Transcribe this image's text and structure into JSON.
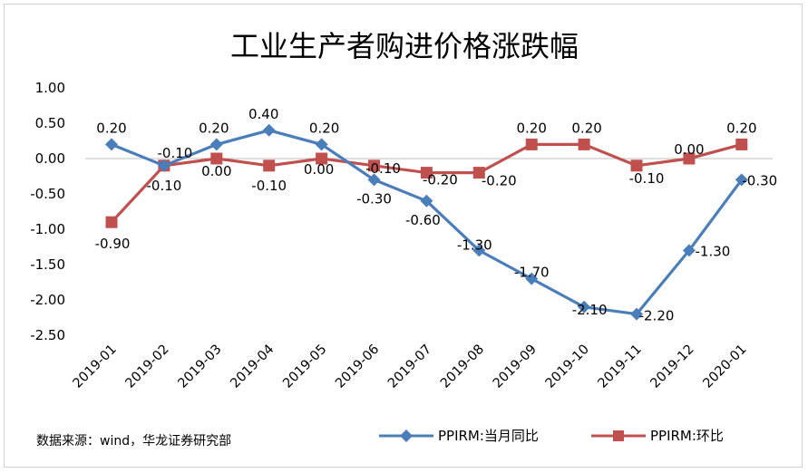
{
  "chart_data": {
    "type": "line",
    "title": "工业生产者购进价格涨跌幅",
    "categories": [
      "2019-01",
      "2019-02",
      "2019-03",
      "2019-04",
      "2019-05",
      "2019-06",
      "2019-07",
      "2019-08",
      "2019-09",
      "2019-10",
      "2019-11",
      "2019-12",
      "2020-01"
    ],
    "ylim": [
      -2.5,
      1.0
    ],
    "yticks": [
      "1.00",
      "0.50",
      "0.00",
      "-0.50",
      "-1.00",
      "-1.50",
      "-2.00",
      "-2.50"
    ],
    "grid": false,
    "legend_position": "bottom-right",
    "series": [
      {
        "name": "PPIRM:当月同比",
        "color": "#4a7ebb",
        "marker": "diamond",
        "values": [
          0.2,
          -0.1,
          0.2,
          0.4,
          0.2,
          -0.3,
          -0.6,
          -1.3,
          -1.7,
          -2.1,
          -2.2,
          -1.3,
          -0.3
        ],
        "labels": [
          "0.20",
          "-0.10",
          "0.20",
          "0.40",
          "0.20",
          "-0.30",
          "-0.60",
          "-1.30",
          "-1.70",
          "-2.10",
          "-2.20",
          "-1.30",
          "-0.30"
        ]
      },
      {
        "name": "PPIRM:环比",
        "color": "#c0504d",
        "marker": "square",
        "values": [
          -0.9,
          -0.1,
          0.0,
          -0.1,
          0.0,
          -0.1,
          -0.2,
          -0.2,
          0.2,
          0.2,
          -0.1,
          0.0,
          0.2
        ],
        "labels": [
          "-0.90",
          "-0.10",
          "0.00",
          "-0.10",
          "0.00",
          "-0.10",
          "-0.20",
          "-0.20",
          "0.20",
          "0.20",
          "-0.10",
          "0.00",
          "0.20"
        ]
      }
    ]
  },
  "source_note": "数据来源：wind，华龙证券研究部"
}
